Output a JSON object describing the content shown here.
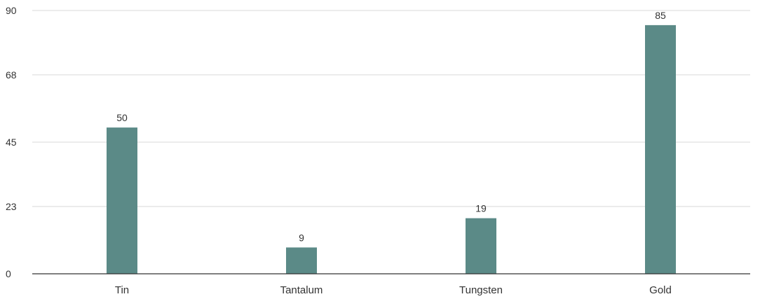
{
  "chart_data": {
    "type": "bar",
    "title": "",
    "xlabel": "",
    "ylabel": "",
    "categories": [
      "Tin",
      "Tantalum",
      "Tungsten",
      "Gold"
    ],
    "values": [
      50,
      9,
      19,
      85
    ],
    "data_labels": [
      "50",
      "9",
      "19",
      "85"
    ],
    "ylim": [
      0,
      90
    ],
    "yticks": [
      0,
      23,
      45,
      68,
      90
    ],
    "ytick_labels": [
      "0",
      "23",
      "45",
      "68",
      "90"
    ],
    "grid": true,
    "legend": "none",
    "colors": {
      "bar": "#5b8a87",
      "grid": "#d9d9d9",
      "axis": "#333333",
      "text": "#333333"
    }
  }
}
